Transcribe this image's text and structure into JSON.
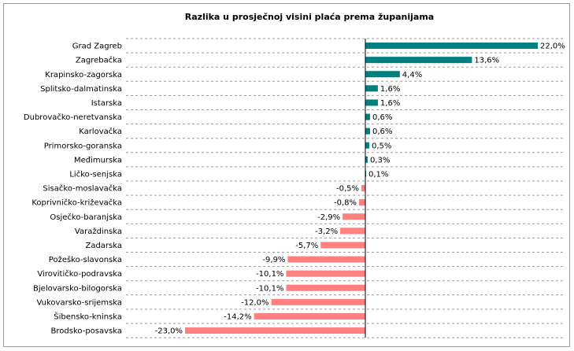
{
  "chart_data": {
    "type": "bar",
    "orientation": "horizontal",
    "title": "Razlika u prosječnoj visini plaća prema županijama",
    "xlabel": "",
    "ylabel": "",
    "xlim": [
      -25,
      25
    ],
    "grid": "horizontal dashed",
    "legend": "none",
    "colors": {
      "positive": "#008080",
      "negative": "#ff8080"
    },
    "categories": [
      "Grad Zagreb",
      "Zagrebačka",
      "Krapinsko-zagorska",
      "Splitsko-dalmatinska",
      "Istarska",
      "Dubrovačko-neretvanska",
      "Karlovačka",
      "Primorsko-goranska",
      "Međimurska",
      "Ličko-senjska",
      "Sisačko-moslavačka",
      "Koprivničko-križevačka",
      "Osječko-baranjska",
      "Varaždinska",
      "Zadarska",
      "Požeško-slavonska",
      "Virovitičko-podravska",
      "Bjelovarsko-bilogorska",
      "Vukovarsko-srijemska",
      "Šibensko-kninska",
      "Brodsko-posavska"
    ],
    "values": [
      22.0,
      13.6,
      4.4,
      1.6,
      1.6,
      0.6,
      0.6,
      0.5,
      0.3,
      0.1,
      -0.5,
      -0.8,
      -2.9,
      -3.2,
      -5.7,
      -9.9,
      -10.1,
      -10.1,
      -12.0,
      -14.2,
      -23.0
    ],
    "value_labels": [
      "22,0%",
      "13,6%",
      "4,4%",
      "1,6%",
      "1,6%",
      "0,6%",
      "0,6%",
      "0,5%",
      "0,3%",
      "0,1%",
      "-0,5%",
      "-0,8%",
      "-2,9%",
      "-3,2%",
      "-5,7%",
      "-9,9%",
      "-10,1%",
      "-10,1%",
      "-12,0%",
      "-14,2%",
      "-23,0%"
    ]
  }
}
